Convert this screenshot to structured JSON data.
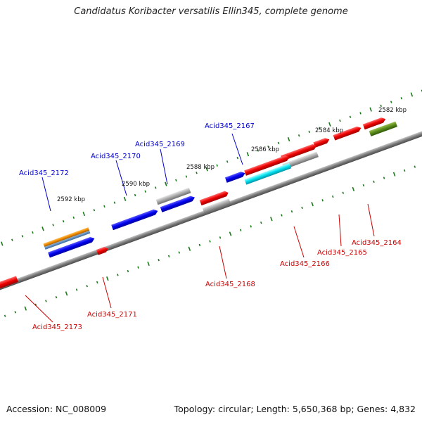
{
  "title": "Candidatus Koribacter versatilis Ellin345, complete genome",
  "footer": {
    "accession": "Accession: NC_008009",
    "summary": "Topology: circular; Length: 5,650,368 bp; Genes: 4,832"
  },
  "scale_labels": [
    "2582 kbp",
    "2584 kbp",
    "2586 kbp",
    "2588 kbp",
    "2590 kbp",
    "2592 kbp"
  ],
  "gene_labels_forward": [
    "Acid345_2167",
    "Acid345_2169",
    "Acid345_2170",
    "Acid345_2172"
  ],
  "gene_labels_reverse": [
    "Acid345_2164",
    "Acid345_2165",
    "Acid345_2166",
    "Acid345_2168",
    "Acid345_2171",
    "Acid345_2173"
  ],
  "colors": {
    "backbone": "#7a7a7a",
    "forward_gene": "#0000ee",
    "reverse_gene": "#ee0000",
    "pseudo_gray": "#a8a8a8",
    "cyan": "#00e0f0",
    "orange": "#f08c00",
    "olive": "#5a8a1a",
    "tick_green": "#1a7a1a",
    "forward_label": "#0000cc",
    "reverse_label": "#cc0000"
  }
}
